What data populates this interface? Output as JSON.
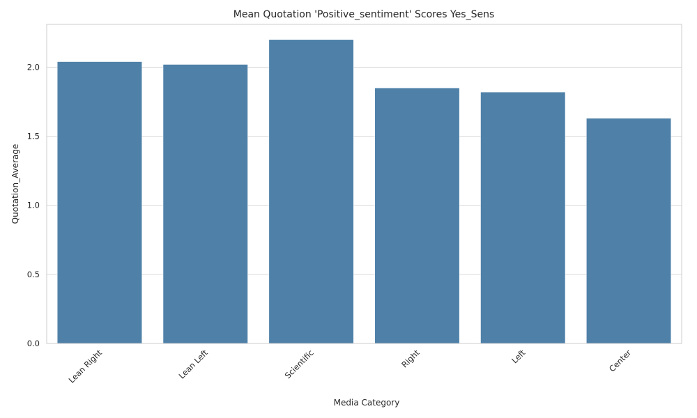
{
  "chart_data": {
    "type": "bar",
    "title": "Mean Quotation 'Positive_sentiment' Scores Yes_Sens",
    "xlabel": "Media Category",
    "ylabel": "Quotation_Average",
    "categories": [
      "Lean Right",
      "Lean Left",
      "Scientific",
      "Right",
      "Left",
      "Center"
    ],
    "values": [
      2.04,
      2.02,
      2.2,
      1.85,
      1.82,
      1.63
    ],
    "ylim": [
      0,
      2.31
    ],
    "yticks": [
      "0.0",
      "0.5",
      "1.0",
      "1.5",
      "2.0"
    ],
    "grid": true,
    "bar_color": "#4f81a8"
  }
}
